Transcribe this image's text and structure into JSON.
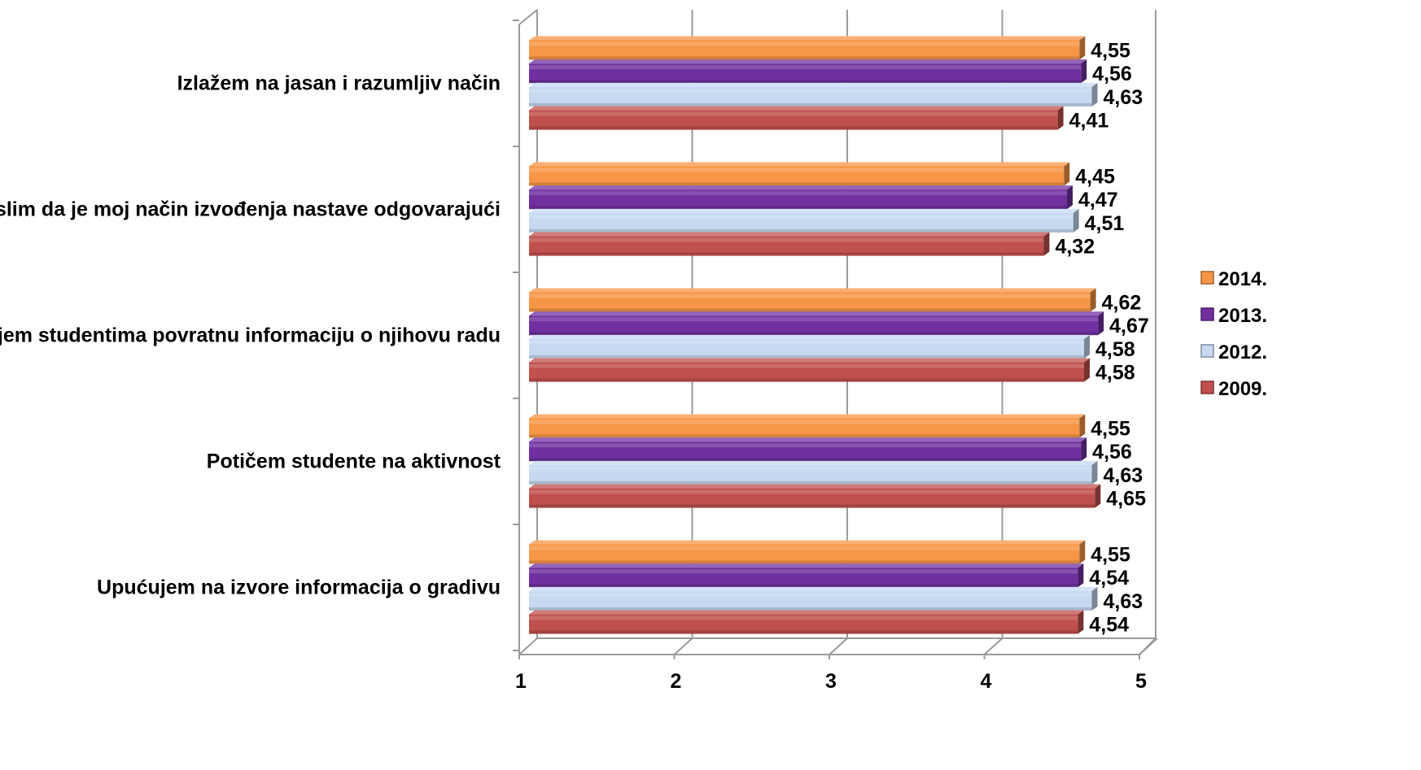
{
  "chart_data": {
    "type": "bar",
    "orientation": "horizontal",
    "title": "",
    "xlabel": "",
    "ylabel": "",
    "xlim": [
      1,
      5
    ],
    "x_ticks": [
      "1",
      "2",
      "3",
      "4",
      "5"
    ],
    "grid": true,
    "legend_position": "right",
    "categories": [
      "Izlažem na jasan i razumljiv način",
      "Mislim da je moj način izvođenja nastave odgovarajući",
      "Dajem studentima povratnu informaciju o njihovu radu",
      "Potičem studente na aktivnost",
      "Upućujem na izvore informacija o gradivu"
    ],
    "series": [
      {
        "name": "2014.",
        "color": "#F79646",
        "values": [
          4.55,
          4.45,
          4.62,
          4.55,
          4.55
        ],
        "labels": [
          "4,55",
          "4,45",
          "4,62",
          "4,55",
          "4,55"
        ]
      },
      {
        "name": "2013.",
        "color": "#7030A0",
        "values": [
          4.56,
          4.47,
          4.67,
          4.56,
          4.54
        ],
        "labels": [
          "4,56",
          "4,47",
          "4,67",
          "4,56",
          "4,54"
        ]
      },
      {
        "name": "2012.",
        "color": "#C6D9F1",
        "values": [
          4.63,
          4.51,
          4.58,
          4.63,
          4.63
        ],
        "labels": [
          "4,63",
          "4,51",
          "4,58",
          "4,63",
          "4,63"
        ]
      },
      {
        "name": "2009.",
        "color": "#C0504D",
        "values": [
          4.41,
          4.32,
          4.58,
          4.65,
          4.54
        ],
        "labels": [
          "4,41",
          "4,32",
          "4,58",
          "4,65",
          "4,54"
        ]
      }
    ]
  }
}
